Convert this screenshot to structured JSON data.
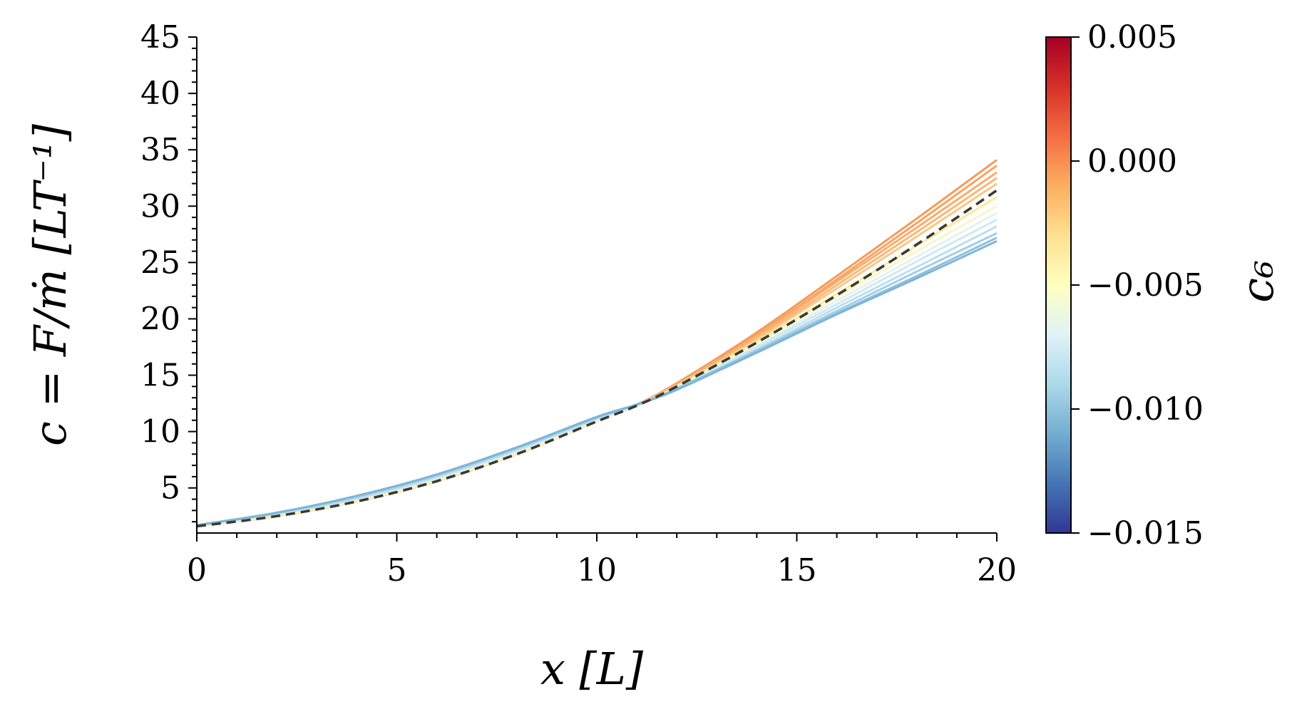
{
  "chart_data": {
    "type": "line",
    "xlabel": "x [L]",
    "ylabel": "c = F/ṁ [LT⁻¹]",
    "xlim": [
      0,
      20
    ],
    "ylim": [
      1,
      45
    ],
    "x_ticks": [
      "0",
      "5",
      "10",
      "15",
      "20"
    ],
    "y_ticks": [
      "5",
      "10",
      "15",
      "20",
      "25",
      "30",
      "35",
      "40",
      "45"
    ],
    "grid": false,
    "colorbar": {
      "label": "c₆",
      "range": [
        -0.015,
        0.005
      ],
      "ticks": [
        "0.005",
        "0.000",
        "−0.005",
        "−0.010",
        "−0.015"
      ],
      "colormap": [
        "#313695",
        "#4575b4",
        "#74add1",
        "#abd9e9",
        "#e0f3f8",
        "#ffffbf",
        "#fee090",
        "#fdae61",
        "#f46d43",
        "#d73027",
        "#a50026"
      ]
    },
    "x": [
      0,
      2,
      4,
      6,
      8,
      10,
      11,
      12,
      14,
      16,
      18,
      20
    ],
    "series": [
      {
        "c6": 0.0012,
        "color": "#f59a5a",
        "values": [
          1.6,
          2.5,
          3.8,
          5.6,
          8.0,
          10.9,
          12.4,
          14.3,
          18.8,
          23.8,
          28.9,
          34.1
        ]
      },
      {
        "c6": 0.0009,
        "color": "#f7a462",
        "values": [
          1.6,
          2.5,
          3.8,
          5.6,
          8.0,
          10.9,
          12.4,
          14.2,
          18.6,
          23.5,
          28.5,
          33.6
        ]
      },
      {
        "c6": 0.0006,
        "color": "#f8ad6b",
        "values": [
          1.6,
          2.5,
          3.8,
          5.6,
          8.0,
          10.9,
          12.4,
          14.2,
          18.5,
          23.3,
          28.1,
          33.0
        ]
      },
      {
        "c6": 0.0003,
        "color": "#fab777",
        "values": [
          1.6,
          2.5,
          3.8,
          5.6,
          8.0,
          10.9,
          12.4,
          14.1,
          18.3,
          23.0,
          27.7,
          32.5
        ]
      },
      {
        "c6": 0.0,
        "color": "#fcc685",
        "values": [
          1.6,
          2.5,
          3.8,
          5.6,
          8.0,
          10.9,
          12.4,
          14.1,
          18.2,
          22.7,
          27.3,
          32.0
        ]
      },
      {
        "c6": -0.003,
        "color": "#fde99d",
        "values": [
          1.6,
          2.5,
          3.8,
          5.6,
          8.0,
          10.9,
          12.3,
          14.0,
          18.0,
          22.2,
          26.5,
          30.8
        ]
      },
      {
        "c6": -0.005,
        "color": "#f7f7c8",
        "values": [
          1.6,
          2.6,
          3.9,
          5.7,
          8.1,
          10.9,
          12.3,
          13.9,
          17.8,
          21.9,
          26.0,
          30.0
        ]
      },
      {
        "c6": -0.006,
        "color": "#e3f2f4",
        "values": [
          1.7,
          2.7,
          4.0,
          5.8,
          8.2,
          11.0,
          12.3,
          13.9,
          17.6,
          21.6,
          25.5,
          29.4
        ]
      },
      {
        "c6": -0.007,
        "color": "#d0e9f1",
        "values": [
          1.7,
          2.7,
          4.0,
          5.9,
          8.3,
          11.1,
          12.3,
          13.8,
          17.5,
          21.3,
          25.1,
          28.8
        ]
      },
      {
        "c6": -0.008,
        "color": "#bcdff0",
        "values": [
          1.7,
          2.7,
          4.1,
          6.0,
          8.4,
          11.2,
          12.4,
          13.8,
          17.3,
          21.0,
          24.6,
          28.2
        ]
      },
      {
        "c6": -0.009,
        "color": "#a5cee4",
        "values": [
          1.7,
          2.8,
          4.2,
          6.1,
          8.5,
          11.2,
          12.4,
          13.8,
          17.2,
          20.7,
          24.2,
          27.6
        ]
      },
      {
        "c6": -0.01,
        "color": "#8ebfdd",
        "values": [
          1.7,
          2.8,
          4.3,
          6.2,
          8.6,
          11.3,
          12.4,
          13.8,
          17.1,
          20.5,
          23.8,
          27.2
        ]
      },
      {
        "c6": -0.0105,
        "color": "#7db5d8",
        "values": [
          1.7,
          2.8,
          4.3,
          6.2,
          8.6,
          11.3,
          12.4,
          13.7,
          17.0,
          20.4,
          23.6,
          26.9
        ]
      },
      {
        "dashed": true,
        "color": "#3a3a32",
        "values": [
          1.6,
          2.5,
          3.8,
          5.6,
          8.0,
          10.9,
          12.3,
          14.0,
          17.9,
          22.1,
          26.6,
          31.4
        ]
      }
    ]
  }
}
